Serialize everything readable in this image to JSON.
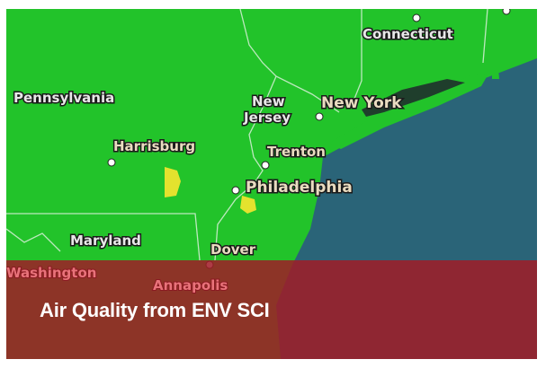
{
  "map": {
    "labels": {
      "pennsylvania": "Pennsylvania",
      "connecticut": "Connecticut",
      "new_jersey_line1": "New",
      "new_jersey_line2": "Jersey",
      "new_york": "New York",
      "harrisburg": "Harrisburg",
      "trenton": "Trenton",
      "philadelphia": "Philadelphia",
      "maryland": "Maryland",
      "dover": "Dover",
      "washington": "Washington",
      "annapolis": "Annapolis"
    },
    "colors": {
      "aqi_good": "#22c32a",
      "aqi_moderate": "#e4e22e",
      "ocean": "#2a6478",
      "overlay": "#a01c26"
    }
  },
  "caption": {
    "title": "Air Quality from ENV SCI"
  }
}
